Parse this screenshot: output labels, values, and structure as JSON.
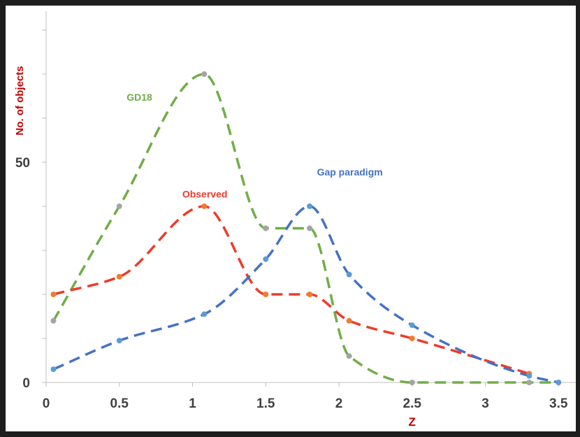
{
  "chart_data": {
    "type": "line",
    "xlabel": "Z",
    "ylabel": "No. of objects",
    "xlim": [
      0,
      3.6
    ],
    "ylim": [
      0,
      80
    ],
    "x_ticks": [
      "0",
      "0.5",
      "1",
      "1.5",
      "2",
      "2.5",
      "3",
      "3.5"
    ],
    "y_ticks": [
      "0",
      "50"
    ],
    "grid": false,
    "axis_color": "#bfbfbf",
    "label_color": "#c00000",
    "series": [
      {
        "name": "GD18",
        "color": "#70ad47",
        "marker_color": "#a5a5a5",
        "x": [
          0.05,
          0.5,
          1.08,
          1.5,
          1.8,
          2.07,
          2.5,
          3.3,
          3.5
        ],
        "y": [
          14,
          40,
          70,
          35,
          35,
          6,
          0,
          0,
          0
        ]
      },
      {
        "name": "Observed",
        "color": "#ee3b2b",
        "marker_color": "#ed7d31",
        "x": [
          0.05,
          0.5,
          1.08,
          1.5,
          1.8,
          2.07,
          2.5,
          3.3
        ],
        "y": [
          20,
          24,
          40,
          20,
          20,
          14,
          10,
          2
        ]
      },
      {
        "name": "Gap paradigm",
        "color": "#4472c4",
        "marker_color": "#5b9bd5",
        "x": [
          0.05,
          0.5,
          1.08,
          1.5,
          1.8,
          2.07,
          2.5,
          3.3,
          3.5
        ],
        "y": [
          3,
          9.5,
          15.5,
          28,
          40,
          24.5,
          13,
          1.5,
          0
        ]
      }
    ],
    "annotations": [
      {
        "text": "GD18",
        "series": 0,
        "x": 0.55,
        "y": 64
      },
      {
        "text": "Observed",
        "series": 1,
        "x": 0.93,
        "y": 42
      },
      {
        "text": "Gap paradigm",
        "series": 2,
        "x": 1.85,
        "y": 47
      }
    ]
  }
}
